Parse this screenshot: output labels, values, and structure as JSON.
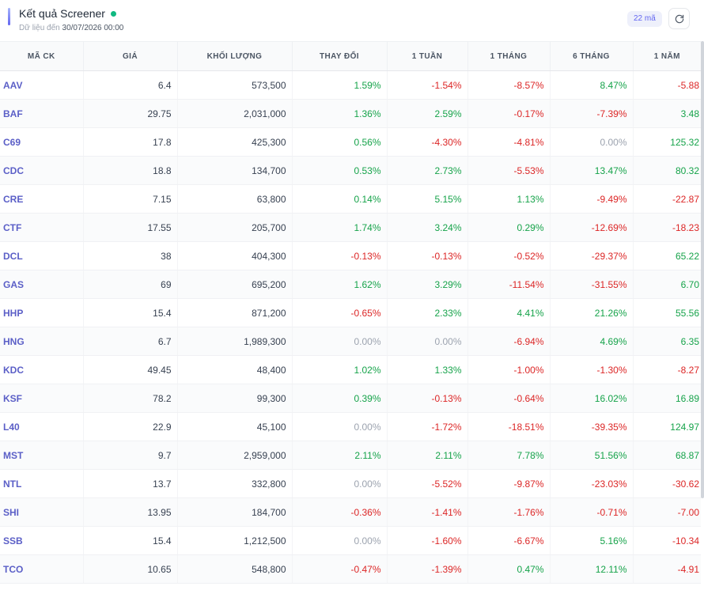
{
  "header": {
    "title": "Kết quả Screener",
    "subtitle_prefix": "Dữ liệu đến",
    "subtitle_date": "30/07/2026 00:00",
    "count_badge": "22 mã",
    "refresh_icon": "refresh-icon"
  },
  "table": {
    "columns": [
      "MÃ CK",
      "GIÁ",
      "KHỐI LƯỢNG",
      "THAY ĐỔI",
      "1 TUẦN",
      "1 THÁNG",
      "6 THÁNG",
      "1 NĂM"
    ],
    "rows": [
      [
        "AAV",
        "6.4",
        "573,500",
        "1.59%",
        "-1.54%",
        "-8.57%",
        "8.47%",
        "-5.88"
      ],
      [
        "BAF",
        "29.75",
        "2,031,000",
        "1.36%",
        "2.59%",
        "-0.17%",
        "-7.39%",
        "3.48"
      ],
      [
        "C69",
        "17.8",
        "425,300",
        "0.56%",
        "-4.30%",
        "-4.81%",
        "0.00%",
        "125.32"
      ],
      [
        "CDC",
        "18.8",
        "134,700",
        "0.53%",
        "2.73%",
        "-5.53%",
        "13.47%",
        "80.32"
      ],
      [
        "CRE",
        "7.15",
        "63,800",
        "0.14%",
        "5.15%",
        "1.13%",
        "-9.49%",
        "-22.87"
      ],
      [
        "CTF",
        "17.55",
        "205,700",
        "1.74%",
        "3.24%",
        "0.29%",
        "-12.69%",
        "-18.23"
      ],
      [
        "DCL",
        "38",
        "404,300",
        "-0.13%",
        "-0.13%",
        "-0.52%",
        "-29.37%",
        "65.22"
      ],
      [
        "GAS",
        "69",
        "695,200",
        "1.62%",
        "3.29%",
        "-11.54%",
        "-31.55%",
        "6.70"
      ],
      [
        "HHP",
        "15.4",
        "871,200",
        "-0.65%",
        "2.33%",
        "4.41%",
        "21.26%",
        "55.56"
      ],
      [
        "HNG",
        "6.7",
        "1,989,300",
        "0.00%",
        "0.00%",
        "-6.94%",
        "4.69%",
        "6.35"
      ],
      [
        "KDC",
        "49.45",
        "48,400",
        "1.02%",
        "1.33%",
        "-1.00%",
        "-1.30%",
        "-8.27"
      ],
      [
        "KSF",
        "78.2",
        "99,300",
        "0.39%",
        "-0.13%",
        "-0.64%",
        "16.02%",
        "16.89"
      ],
      [
        "L40",
        "22.9",
        "45,100",
        "0.00%",
        "-1.72%",
        "-18.51%",
        "-39.35%",
        "124.97"
      ],
      [
        "MST",
        "9.7",
        "2,959,000",
        "2.11%",
        "2.11%",
        "7.78%",
        "51.56%",
        "68.87"
      ],
      [
        "NTL",
        "13.7",
        "332,800",
        "0.00%",
        "-5.52%",
        "-9.87%",
        "-23.03%",
        "-30.62"
      ],
      [
        "SHI",
        "13.95",
        "184,700",
        "-0.36%",
        "-1.41%",
        "-1.76%",
        "-0.71%",
        "-7.00"
      ],
      [
        "SSB",
        "15.4",
        "1,212,500",
        "0.00%",
        "-1.60%",
        "-6.67%",
        "5.16%",
        "-10.34"
      ],
      [
        "TCO",
        "10.65",
        "548,800",
        "-0.47%",
        "-1.39%",
        "0.47%",
        "12.11%",
        "-4.91"
      ]
    ]
  },
  "colors": {
    "positive": "#16a34a",
    "negative": "#dc2626",
    "neutral": "#9ca3af",
    "ticker": "#5b5fc7",
    "accent": "#6366f1"
  }
}
